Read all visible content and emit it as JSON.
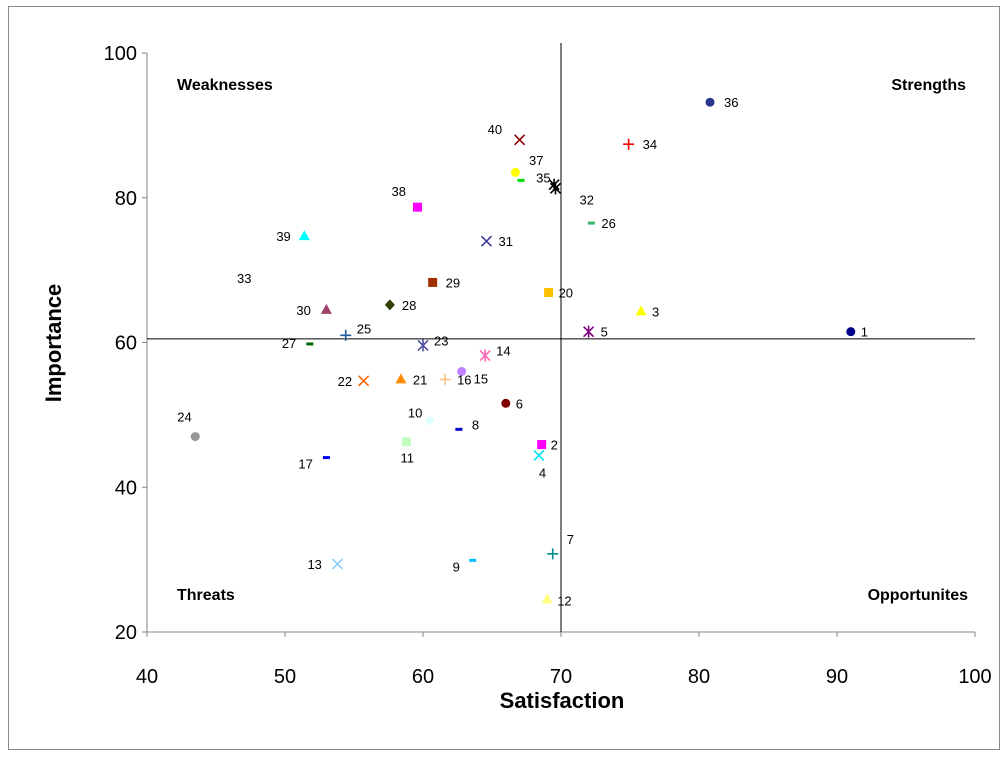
{
  "chart_data": {
    "type": "scatter",
    "title": "",
    "xlabel": "Satisfaction",
    "ylabel": "Importance",
    "xlim": [
      40,
      100
    ],
    "ylim": [
      20,
      100
    ],
    "x_ticks": [
      "40",
      "50",
      "60",
      "70",
      "80",
      "90",
      "100"
    ],
    "y_ticks": [
      "20",
      "40",
      "60",
      "80",
      "100"
    ],
    "reference_lines": {
      "x": 70,
      "y": 60.5
    },
    "grid": false,
    "legend": "none",
    "quadrant_labels": {
      "top_left": "Weaknesses",
      "top_right": "Strengths",
      "bottom_left": "Threats",
      "bottom_right": "Opportunites"
    },
    "points": [
      {
        "label": "1",
        "x": 91.0,
        "y": 61.5,
        "marker": "circle",
        "color": "#00008b"
      },
      {
        "label": "2",
        "x": 68.6,
        "y": 45.9,
        "marker": "square",
        "color": "#ff00ff"
      },
      {
        "label": "3",
        "x": 75.8,
        "y": 64.3,
        "marker": "triangle",
        "color": "#ffff00"
      },
      {
        "label": "4",
        "x": 68.4,
        "y": 44.4,
        "marker": "x",
        "color": "#00e5ee"
      },
      {
        "label": "5",
        "x": 72.0,
        "y": 61.5,
        "marker": "star",
        "color": "#800080"
      },
      {
        "label": "6",
        "x": 66.0,
        "y": 51.6,
        "marker": "circle",
        "color": "#800000"
      },
      {
        "label": "7",
        "x": 69.4,
        "y": 30.8,
        "marker": "plus",
        "color": "#008b8b"
      },
      {
        "label": "8",
        "x": 62.6,
        "y": 48.0,
        "marker": "dash",
        "color": "#0000cd"
      },
      {
        "label": "9",
        "x": 63.6,
        "y": 29.9,
        "marker": "dash",
        "color": "#00bfff"
      },
      {
        "label": "10",
        "x": 60.5,
        "y": 49.2,
        "marker": "diamond",
        "color": "#e0ffff"
      },
      {
        "label": "11",
        "x": 58.8,
        "y": 46.3,
        "marker": "square",
        "color": "#c1ffc1"
      },
      {
        "label": "12",
        "x": 69.0,
        "y": 24.5,
        "marker": "triangle",
        "color": "#ffff80"
      },
      {
        "label": "13",
        "x": 53.8,
        "y": 29.4,
        "marker": "x",
        "color": "#87cefa"
      },
      {
        "label": "14",
        "x": 64.5,
        "y": 58.2,
        "marker": "star",
        "color": "#ff69b4"
      },
      {
        "label": "15",
        "x": 62.8,
        "y": 56.0,
        "marker": "circle",
        "color": "#c080ff"
      },
      {
        "label": "16",
        "x": 61.6,
        "y": 54.9,
        "marker": "plus",
        "color": "#ffc080"
      },
      {
        "label": "17",
        "x": 53.0,
        "y": 44.1,
        "marker": "dash",
        "color": "#0000ff"
      },
      {
        "label": "20",
        "x": 69.1,
        "y": 66.9,
        "marker": "square",
        "color": "#ffc000"
      },
      {
        "label": "21",
        "x": 58.4,
        "y": 54.9,
        "marker": "triangle",
        "color": "#ff8c00"
      },
      {
        "label": "22",
        "x": 55.7,
        "y": 54.7,
        "marker": "x",
        "color": "#ff6600"
      },
      {
        "label": "23",
        "x": 60.0,
        "y": 59.6,
        "marker": "star",
        "color": "#5050a0"
      },
      {
        "label": "24",
        "x": 43.5,
        "y": 47.0,
        "marker": "circle",
        "color": "#969696"
      },
      {
        "label": "25",
        "x": 54.4,
        "y": 61.0,
        "marker": "plus",
        "color": "#1e5aa0"
      },
      {
        "label": "26",
        "x": 72.2,
        "y": 76.5,
        "marker": "dash",
        "color": "#3cb371"
      },
      {
        "label": "27",
        "x": 51.8,
        "y": 59.8,
        "marker": "dash",
        "color": "#006400"
      },
      {
        "label": "28",
        "x": 57.6,
        "y": 65.2,
        "marker": "diamond",
        "color": "#2f3f00"
      },
      {
        "label": "29",
        "x": 60.7,
        "y": 68.3,
        "marker": "square",
        "color": "#a03000"
      },
      {
        "label": "30",
        "x": 53.0,
        "y": 64.5,
        "marker": "triangle",
        "color": "#a0406a"
      },
      {
        "label": "31",
        "x": 64.6,
        "y": 74.0,
        "marker": "x",
        "color": "#3c3ca0"
      },
      {
        "label": "32",
        "x": 69.6,
        "y": 81.3,
        "marker": "star",
        "color": "#000000"
      },
      {
        "label": "33",
        "x": null,
        "y": null,
        "marker": "none",
        "color": "#000000"
      },
      {
        "label": "34",
        "x": 74.9,
        "y": 87.4,
        "marker": "plus",
        "color": "#ff0000"
      },
      {
        "label": "35",
        "x": 69.5,
        "y": 81.8,
        "marker": "star",
        "color": "#000000"
      },
      {
        "label": "36",
        "x": 80.8,
        "y": 93.2,
        "marker": "circle",
        "color": "#2a3590"
      },
      {
        "label": "37",
        "x": 67.1,
        "y": 82.4,
        "marker": "dash",
        "color": "#00dd00"
      },
      {
        "label": "38",
        "x": 59.6,
        "y": 78.7,
        "marker": "square",
        "color": "#ff00ff"
      },
      {
        "label": "39",
        "x": 51.4,
        "y": 74.7,
        "marker": "triangle",
        "color": "#00ffff"
      },
      {
        "label": "40",
        "x": 67.0,
        "y": 88.0,
        "marker": "x",
        "color": "#8b0000"
      },
      {
        "label": "",
        "x": 66.7,
        "y": 83.5,
        "marker": "circle",
        "color": "#ffff00"
      }
    ]
  }
}
